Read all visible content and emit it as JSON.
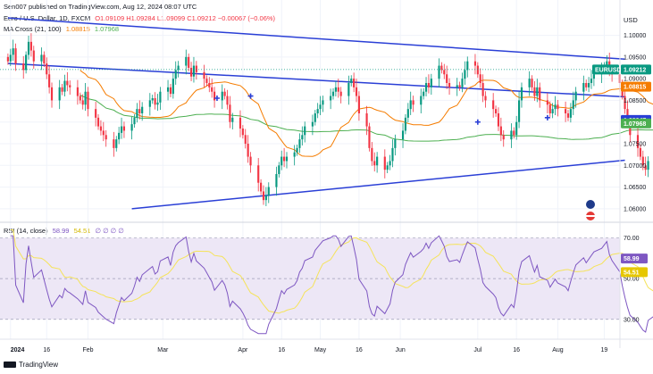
{
  "header": {
    "publisher": "Sen007 published on TradingView.com, Aug 12, 2024 08:07 UTC",
    "symbol_line": "Euro / U.S. Dollar, 1D, FXCM",
    "ohlc": "O1.09109  H1.09284  L1.09099  C1.09212  −0.00067 (−0.06%)",
    "ma_line_label": "MA Cross (21, 100)",
    "ma_short_value": "1.08815",
    "ma_long_value": "1.07968"
  },
  "footer": {
    "logo_text": "TradingView"
  },
  "colors": {
    "up": "#089981",
    "down": "#f23645",
    "trendline": "#2a3fd6",
    "ma_short": "#f57c00",
    "ma_long": "#4caf50",
    "rsi": "#7e57c2",
    "rsi_ma": "#f5e35a",
    "rsi_band": "#ede7f6",
    "last_price_line": "#089981"
  },
  "chart_data": [
    {
      "type": "candlestick",
      "title": "Euro / U.S. Dollar, 1D, FXCM",
      "currency_label": "USD",
      "ylim": [
        1.0575,
        1.1065
      ],
      "y_ticks": [
        "1.10000",
        "1.09500",
        "1.09000",
        "1.08500",
        "1.08000",
        "1.07500",
        "1.07000",
        "1.06500",
        "1.06000"
      ],
      "x_ticks": [
        "2024",
        "16",
        "Feb",
        "Mar",
        "Apr",
        "16",
        "May",
        "16",
        "Jun",
        "Jul",
        "16",
        "Aug",
        "19"
      ],
      "x_tick_day": [
        2,
        16,
        32,
        61,
        92,
        107,
        122,
        137,
        153,
        183,
        198,
        214,
        232
      ],
      "close": [
        1.094,
        1.0955,
        1.097,
        1.0935,
        1.092,
        1.0955,
        1.0985,
        1.0965,
        1.094,
        1.0955,
        1.0935,
        1.091,
        1.088,
        1.085,
        1.088,
        1.087,
        1.0895,
        1.0885,
        1.088,
        1.086,
        1.085,
        1.084,
        1.087,
        1.083,
        1.081,
        1.079,
        1.078,
        1.077,
        1.076,
        1.074,
        1.076,
        1.0775,
        1.079,
        1.078,
        1.0795,
        1.081,
        1.083,
        1.082,
        1.0835,
        1.085,
        1.0855,
        1.084,
        1.0845,
        1.087,
        1.088,
        1.0865,
        1.09,
        1.092,
        1.093,
        1.095,
        1.0925,
        1.0905,
        1.093,
        1.0915,
        1.09,
        1.089,
        1.088,
        1.087,
        1.085,
        1.087,
        1.086,
        1.084,
        1.08,
        1.081,
        1.0785,
        1.077,
        1.075,
        1.072,
        1.07,
        1.066,
        1.064,
        1.062,
        1.063,
        1.065,
        1.068,
        1.07,
        1.072,
        1.071,
        1.072,
        1.073,
        1.074,
        1.076,
        1.077,
        1.079,
        1.08,
        1.082,
        1.083,
        1.084,
        1.085,
        1.086,
        1.087,
        1.088,
        1.087,
        1.086,
        1.089,
        1.09,
        1.088,
        1.086,
        1.082,
        1.079,
        1.074,
        1.071,
        1.07,
        1.072,
        1.069,
        1.07,
        1.071,
        1.074,
        1.076,
        1.078,
        1.081,
        1.083,
        1.085,
        1.084,
        1.086,
        1.087,
        1.089,
        1.088,
        1.09,
        1.093,
        1.092,
        1.091,
        1.089,
        1.088,
        1.0885,
        1.088,
        1.09,
        1.092,
        1.094,
        1.093,
        1.091,
        1.089,
        1.086,
        1.085,
        1.083,
        1.082,
        1.079,
        1.077,
        1.076,
        1.078,
        1.077,
        1.08,
        1.085,
        1.088,
        1.09,
        1.088,
        1.086,
        1.088,
        1.085,
        1.084,
        1.082,
        1.083,
        1.084,
        1.083,
        1.082,
        1.081,
        1.083,
        1.085,
        1.087,
        1.089,
        1.088,
        1.089,
        1.09,
        1.091,
        1.092,
        1.093,
        1.094,
        1.092,
        1.091,
        1.089,
        1.086,
        1.083,
        1.08,
        1.077,
        1.074,
        1.072,
        1.07,
        1.069,
        1.071,
        1.072,
        1.07,
        1.071,
        1.073,
        1.074,
        1.076,
        1.077,
        1.079,
        1.08,
        1.0815,
        1.083,
        1.084,
        1.085,
        1.087,
        1.088,
        1.09,
        1.091,
        1.092,
        1.0935,
        1.094,
        1.092,
        1.091,
        1.089,
        1.088,
        1.089,
        1.087,
        1.086,
        1.088,
        1.086,
        1.085,
        1.083,
        1.082,
        1.08,
        1.083,
        1.079,
        1.09,
        1.092,
        1.095,
        1.093,
        1.092,
        1.0921
      ],
      "series": [
        {
          "name": "MA 21",
          "value_label": "1.08815"
        },
        {
          "name": "MA 100",
          "value_label": "1.07968"
        }
      ],
      "last_price": {
        "symbol": "EURUSD",
        "value": 1.09212,
        "label": "1.09212"
      },
      "ma_short_last": 1.08815,
      "ma_long_last": 1.07968,
      "trendlines": [
        {
          "from": [
            1,
            1.104
          ],
          "to": [
            240,
            1.0945
          ]
        },
        {
          "from": [
            1,
            1.0935
          ],
          "to": [
            240,
            1.0858
          ]
        },
        {
          "from": [
            49,
            1.06
          ],
          "to": [
            240,
            1.0712
          ]
        }
      ],
      "cross_markers": [
        [
          82,
          1.0855
        ],
        [
          95,
          1.086
        ],
        [
          183,
          1.08
        ],
        [
          210,
          1.081
        ]
      ]
    },
    {
      "type": "line",
      "title": "RSI (14, close)",
      "ylim": [
        22,
        72
      ],
      "y_ticks": [
        "70.00",
        "50.00",
        "30.00"
      ],
      "band": [
        30,
        70
      ],
      "series": [
        {
          "name": "RSI",
          "value_label": "58.99"
        },
        {
          "name": "RSI-based MA",
          "value_label": "54.51"
        }
      ],
      "rsi_ma_last": 54.51,
      "rsi_last": 58.99,
      "header_values": "∅ ∅ ∅ ∅"
    }
  ]
}
